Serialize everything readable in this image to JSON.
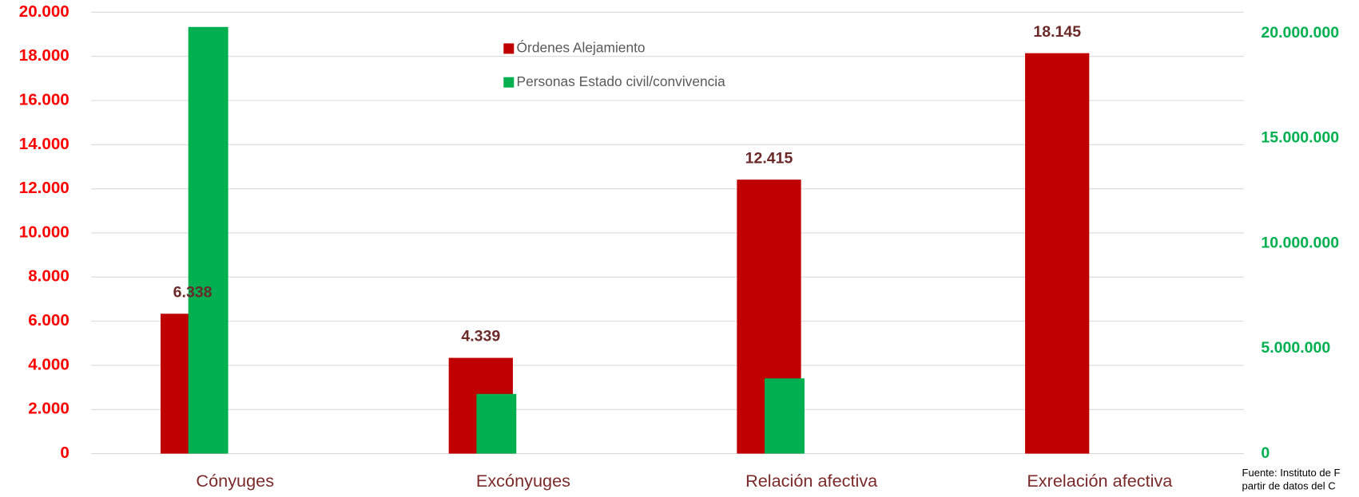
{
  "chart_data": {
    "type": "bar",
    "categories": [
      "Cónyuges",
      "Excónyuges",
      "Relación afectiva",
      "Exrelación afectiva"
    ],
    "series": [
      {
        "name": "Órdenes Alejamiento",
        "color": "#c00000",
        "values": [
          6338,
          4339,
          12415,
          18145
        ],
        "value_labels": [
          "6.338",
          "4.339",
          "12.415",
          "18.145"
        ]
      },
      {
        "name": "Personas Estado civil/convivencia",
        "color": "#00b050",
        "axis": "y2",
        "values": [
          20300000,
          2840000,
          3580000,
          null
        ]
      }
    ],
    "ylim": [
      0,
      20000
    ],
    "yticks": [
      {
        "value": 0,
        "label": "0"
      },
      {
        "value": 2000,
        "label": "2.000"
      },
      {
        "value": 4000,
        "label": "4.000"
      },
      {
        "value": 6000,
        "label": "6.000"
      },
      {
        "value": 8000,
        "label": "8.000"
      },
      {
        "value": 10000,
        "label": "10.000"
      },
      {
        "value": 12000,
        "label": "12.000"
      },
      {
        "value": 14000,
        "label": "14.000"
      },
      {
        "value": 16000,
        "label": "16.000"
      },
      {
        "value": 18000,
        "label": "18.000"
      },
      {
        "value": 20000,
        "label": "20.000"
      }
    ],
    "y2lim": [
      0,
      21000000
    ],
    "y2ticks": [
      {
        "value": 0,
        "label": "0"
      },
      {
        "value": 5000000,
        "label": "5.000.000"
      },
      {
        "value": 10000000,
        "label": "10.000.000"
      },
      {
        "value": 15000000,
        "label": "15.000.000"
      },
      {
        "value": 20000000,
        "label": "20.000.000"
      }
    ],
    "grid": true,
    "source": [
      "Fuente: Instituto de F",
      "partir de datos del C"
    ]
  }
}
